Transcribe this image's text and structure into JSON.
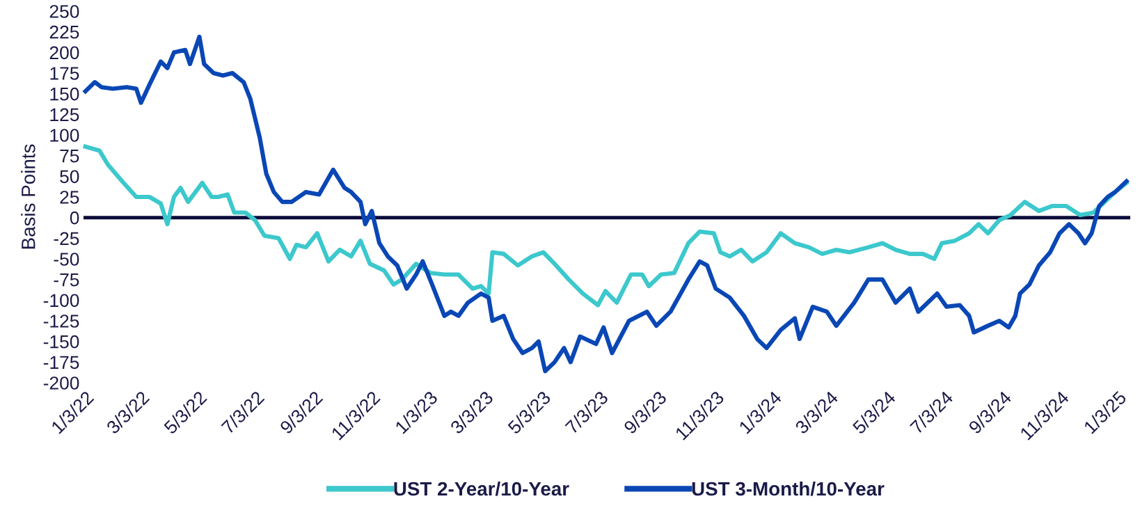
{
  "chart_data": {
    "type": "line",
    "ylabel": "Basis Points",
    "xlim": [
      "2022-01-01",
      "2025-01-16"
    ],
    "ylim": [
      -200,
      250
    ],
    "yticks": [
      -200,
      -175,
      -150,
      -125,
      -100,
      -75,
      -50,
      -25,
      0,
      25,
      50,
      75,
      100,
      125,
      150,
      175,
      200,
      225,
      250
    ],
    "xticks": [
      {
        "value": "2022-01-03",
        "label": "1/3/22"
      },
      {
        "value": "2022-03-03",
        "label": "3/3/22"
      },
      {
        "value": "2022-05-03",
        "label": "5/3/22"
      },
      {
        "value": "2022-07-03",
        "label": "7/3/22"
      },
      {
        "value": "2022-09-03",
        "label": "9/3/22"
      },
      {
        "value": "2022-11-03",
        "label": "11/3/22"
      },
      {
        "value": "2023-01-03",
        "label": "1/3/23"
      },
      {
        "value": "2023-03-03",
        "label": "3/3/23"
      },
      {
        "value": "2023-05-03",
        "label": "5/3/23"
      },
      {
        "value": "2023-07-03",
        "label": "7/3/23"
      },
      {
        "value": "2023-09-03",
        "label": "9/3/23"
      },
      {
        "value": "2023-11-03",
        "label": "11/3/23"
      },
      {
        "value": "2024-01-03",
        "label": "1/3/24"
      },
      {
        "value": "2024-03-03",
        "label": "3/3/24"
      },
      {
        "value": "2024-05-03",
        "label": "5/3/24"
      },
      {
        "value": "2024-07-03",
        "label": "7/3/24"
      },
      {
        "value": "2024-09-03",
        "label": "9/3/24"
      },
      {
        "value": "2024-11-03",
        "label": "11/3/24"
      },
      {
        "value": "2025-01-03",
        "label": "1/3/25"
      }
    ],
    "grid": false,
    "legend": "bottom",
    "marker": "none",
    "line_style": "solid",
    "ref_lines": [
      {
        "axis": "y",
        "value": 0,
        "color": "#0b0b3b",
        "line_style": "solid"
      }
    ],
    "series": [
      {
        "name": "UST 2-Year/10-Year",
        "color": "#3cc8cc",
        "x": [
          "2022-01-03",
          "2022-01-18",
          "2022-01-27",
          "2022-02-11",
          "2022-02-26",
          "2022-03-12",
          "2022-03-24",
          "2022-03-31",
          "2022-04-07",
          "2022-04-14",
          "2022-04-22",
          "2022-05-07",
          "2022-05-17",
          "2022-05-24",
          "2022-06-03",
          "2022-06-10",
          "2022-06-22",
          "2022-07-02",
          "2022-07-12",
          "2022-07-27",
          "2022-08-08",
          "2022-08-15",
          "2022-08-25",
          "2022-09-06",
          "2022-09-18",
          "2022-09-30",
          "2022-10-12",
          "2022-10-22",
          "2022-11-01",
          "2022-11-16",
          "2022-11-26",
          "2022-12-05",
          "2022-12-20",
          "2023-01-04",
          "2023-01-19",
          "2023-02-03",
          "2023-02-18",
          "2023-02-27",
          "2023-03-07",
          "2023-03-11",
          "2023-03-23",
          "2023-04-07",
          "2023-04-22",
          "2023-05-04",
          "2023-05-16",
          "2023-05-31",
          "2023-06-15",
          "2023-07-01",
          "2023-07-09",
          "2023-07-21",
          "2023-08-05",
          "2023-08-17",
          "2023-08-24",
          "2023-09-06",
          "2023-09-20",
          "2023-10-05",
          "2023-10-17",
          "2023-11-01",
          "2023-11-08",
          "2023-11-18",
          "2023-11-30",
          "2023-12-12",
          "2023-12-27",
          "2024-01-11",
          "2024-01-26",
          "2024-02-10",
          "2024-02-24",
          "2024-03-10",
          "2024-03-24",
          "2024-04-13",
          "2024-04-28",
          "2024-05-12",
          "2024-05-27",
          "2024-06-10",
          "2024-06-22",
          "2024-06-30",
          "2024-07-14",
          "2024-07-29",
          "2024-08-08",
          "2024-08-18",
          "2024-08-30",
          "2024-09-11",
          "2024-09-26",
          "2024-10-11",
          "2024-10-25",
          "2024-11-09",
          "2024-11-24",
          "2024-12-08",
          "2024-12-18",
          "2024-12-31",
          "2025-01-12"
        ],
        "values": [
          86,
          81,
          64,
          44,
          25,
          25,
          17,
          -8,
          25,
          36,
          19,
          42,
          25,
          25,
          28,
          6,
          6,
          -3,
          -22,
          -25,
          -50,
          -33,
          -36,
          -19,
          -53,
          -39,
          -47,
          -28,
          -56,
          -64,
          -81,
          -75,
          -56,
          -67,
          -69,
          -69,
          -86,
          -83,
          -92,
          -42,
          -44,
          -58,
          -47,
          -42,
          -56,
          -75,
          -92,
          -106,
          -89,
          -103,
          -69,
          -69,
          -83,
          -69,
          -67,
          -31,
          -17,
          -19,
          -42,
          -47,
          -39,
          -53,
          -42,
          -19,
          -31,
          -36,
          -44,
          -39,
          -42,
          -36,
          -31,
          -39,
          -44,
          -44,
          -50,
          -31,
          -28,
          -19,
          -8,
          -19,
          -3,
          3,
          19,
          8,
          14,
          14,
          3,
          6,
          17,
          31,
          42
        ]
      },
      {
        "name": "UST 3-Month/10-Year",
        "color": "#0a47b5",
        "x": [
          "2022-01-03",
          "2022-01-13",
          "2022-01-20",
          "2022-02-01",
          "2022-02-16",
          "2022-02-26",
          "2022-03-03",
          "2022-03-12",
          "2022-03-24",
          "2022-03-31",
          "2022-04-07",
          "2022-04-19",
          "2022-04-24",
          "2022-05-04",
          "2022-05-09",
          "2022-05-19",
          "2022-05-29",
          "2022-06-08",
          "2022-06-20",
          "2022-06-27",
          "2022-07-07",
          "2022-07-14",
          "2022-07-22",
          "2022-07-31",
          "2022-08-10",
          "2022-08-25",
          "2022-09-08",
          "2022-09-23",
          "2022-10-05",
          "2022-10-12",
          "2022-10-22",
          "2022-10-27",
          "2022-11-03",
          "2022-11-11",
          "2022-11-20",
          "2022-11-30",
          "2022-12-10",
          "2022-12-20",
          "2022-12-27",
          "2023-01-06",
          "2023-01-19",
          "2023-01-26",
          "2023-02-03",
          "2023-02-13",
          "2023-02-27",
          "2023-03-07",
          "2023-03-11",
          "2023-03-23",
          "2023-04-02",
          "2023-04-12",
          "2023-04-22",
          "2023-04-29",
          "2023-05-06",
          "2023-05-16",
          "2023-05-26",
          "2023-06-02",
          "2023-06-12",
          "2023-06-29",
          "2023-07-07",
          "2023-07-16",
          "2023-08-03",
          "2023-08-22",
          "2023-09-01",
          "2023-09-16",
          "2023-10-05",
          "2023-10-17",
          "2023-10-25",
          "2023-11-03",
          "2023-11-18",
          "2023-12-03",
          "2023-12-17",
          "2023-12-27",
          "2024-01-11",
          "2024-01-26",
          "2024-01-31",
          "2024-02-14",
          "2024-02-29",
          "2024-03-10",
          "2024-03-29",
          "2024-04-13",
          "2024-04-28",
          "2024-05-12",
          "2024-05-27",
          "2024-06-05",
          "2024-06-25",
          "2024-07-05",
          "2024-07-19",
          "2024-07-29",
          "2024-08-03",
          "2024-08-18",
          "2024-08-30",
          "2024-09-09",
          "2024-09-16",
          "2024-09-21",
          "2024-10-01",
          "2024-10-11",
          "2024-10-23",
          "2024-11-02",
          "2024-11-12",
          "2024-11-22",
          "2024-11-29",
          "2024-12-06",
          "2024-12-14",
          "2024-12-23",
          "2024-12-31",
          "2025-01-12"
        ],
        "values": [
          153,
          164,
          158,
          156,
          158,
          156,
          139,
          161,
          189,
          181,
          200,
          203,
          186,
          219,
          186,
          175,
          172,
          175,
          164,
          144,
          97,
          53,
          31,
          19,
          19,
          31,
          28,
          58,
          36,
          31,
          19,
          -8,
          8,
          -31,
          -47,
          -58,
          -86,
          -69,
          -53,
          -81,
          -119,
          -114,
          -119,
          -103,
          -92,
          -97,
          -125,
          -119,
          -147,
          -164,
          -158,
          -150,
          -186,
          -175,
          -158,
          -175,
          -144,
          -153,
          -133,
          -164,
          -125,
          -114,
          -131,
          -114,
          -75,
          -53,
          -58,
          -86,
          -97,
          -119,
          -147,
          -158,
          -136,
          -122,
          -147,
          -108,
          -114,
          -131,
          -103,
          -75,
          -75,
          -103,
          -86,
          -114,
          -92,
          -108,
          -106,
          -119,
          -139,
          -131,
          -125,
          -133,
          -119,
          -92,
          -81,
          -58,
          -42,
          -19,
          -8,
          -19,
          -31,
          -19,
          14,
          25,
          31,
          44
        ]
      }
    ]
  }
}
